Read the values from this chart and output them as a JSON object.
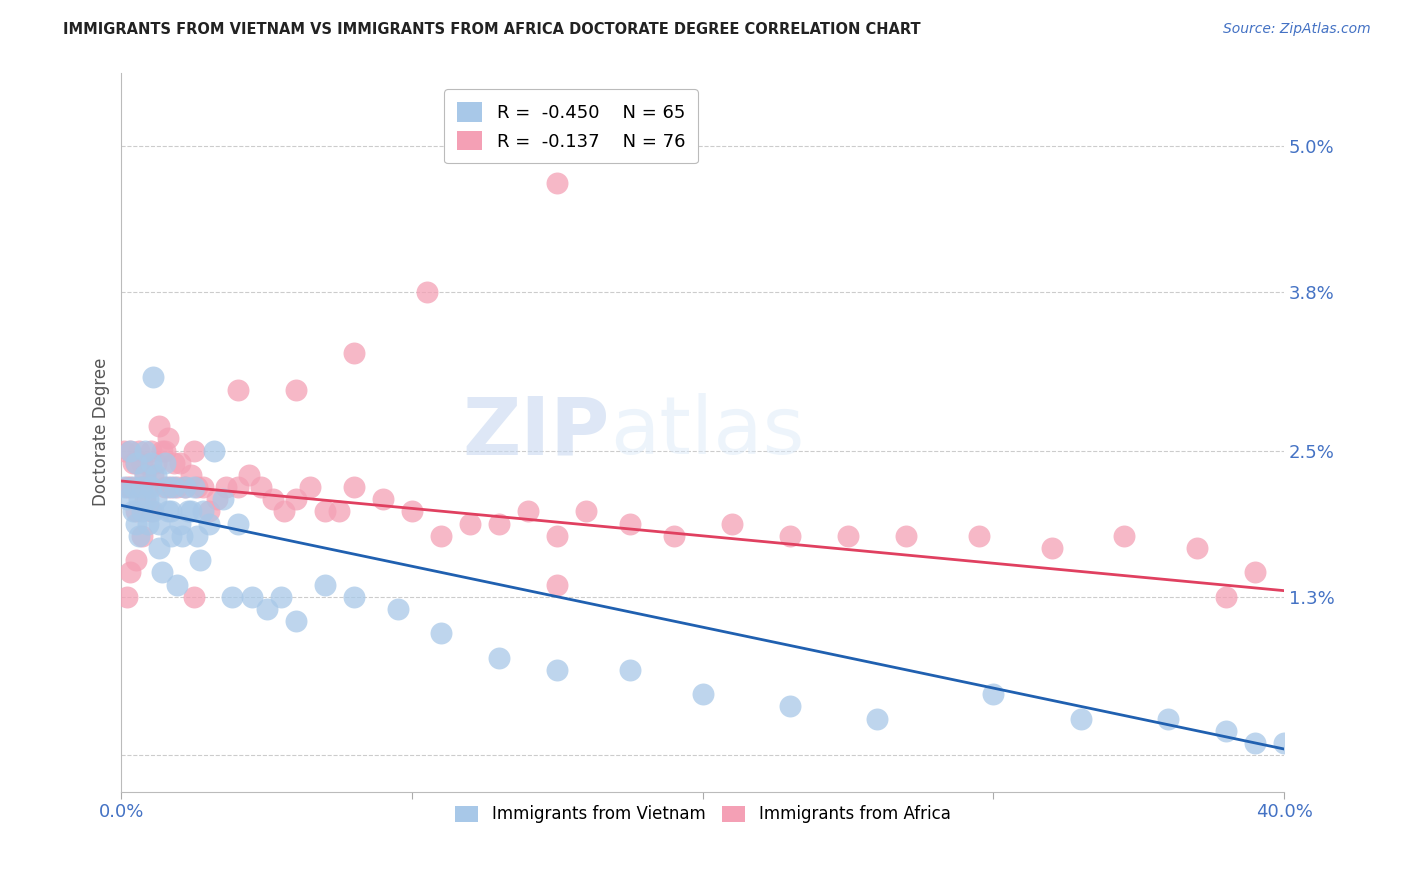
{
  "title": "IMMIGRANTS FROM VIETNAM VS IMMIGRANTS FROM AFRICA DOCTORATE DEGREE CORRELATION CHART",
  "source": "Source: ZipAtlas.com",
  "ylabel": "Doctorate Degree",
  "yticks": [
    0.0,
    0.013,
    0.025,
    0.038,
    0.05
  ],
  "ytick_labels": [
    "",
    "1.3%",
    "2.5%",
    "3.8%",
    "5.0%"
  ],
  "xlim": [
    0.0,
    0.4
  ],
  "ylim": [
    -0.003,
    0.056
  ],
  "legend_r1": "R =  -0.450",
  "legend_n1": "N = 65",
  "legend_r2": "R =  -0.137",
  "legend_n2": "N = 76",
  "color_vietnam": "#A8C8E8",
  "color_africa": "#F4A0B5",
  "line_color_vietnam": "#2060B0",
  "line_color_africa": "#E04060",
  "watermark_zip": "ZIP",
  "watermark_atlas": "atlas",
  "title_color": "#222222",
  "axis_label_color": "#4472C4",
  "vietnam_x": [
    0.001,
    0.002,
    0.003,
    0.004,
    0.004,
    0.005,
    0.005,
    0.006,
    0.006,
    0.007,
    0.007,
    0.008,
    0.008,
    0.009,
    0.009,
    0.01,
    0.01,
    0.011,
    0.011,
    0.012,
    0.012,
    0.013,
    0.013,
    0.014,
    0.015,
    0.016,
    0.016,
    0.017,
    0.017,
    0.018,
    0.019,
    0.02,
    0.021,
    0.022,
    0.023,
    0.024,
    0.025,
    0.026,
    0.027,
    0.028,
    0.03,
    0.032,
    0.035,
    0.038,
    0.04,
    0.045,
    0.05,
    0.055,
    0.06,
    0.07,
    0.08,
    0.095,
    0.11,
    0.13,
    0.15,
    0.175,
    0.2,
    0.23,
    0.26,
    0.3,
    0.33,
    0.36,
    0.38,
    0.39,
    0.4
  ],
  "vietnam_y": [
    0.022,
    0.021,
    0.025,
    0.022,
    0.02,
    0.024,
    0.019,
    0.021,
    0.018,
    0.022,
    0.02,
    0.025,
    0.023,
    0.021,
    0.019,
    0.024,
    0.022,
    0.031,
    0.02,
    0.023,
    0.021,
    0.019,
    0.017,
    0.015,
    0.024,
    0.022,
    0.02,
    0.02,
    0.018,
    0.022,
    0.014,
    0.019,
    0.018,
    0.022,
    0.02,
    0.02,
    0.022,
    0.018,
    0.016,
    0.02,
    0.019,
    0.025,
    0.021,
    0.013,
    0.019,
    0.013,
    0.012,
    0.013,
    0.011,
    0.014,
    0.013,
    0.012,
    0.01,
    0.008,
    0.007,
    0.007,
    0.005,
    0.004,
    0.003,
    0.005,
    0.003,
    0.003,
    0.002,
    0.001,
    0.001
  ],
  "africa_x": [
    0.001,
    0.002,
    0.003,
    0.003,
    0.004,
    0.005,
    0.005,
    0.006,
    0.006,
    0.007,
    0.007,
    0.008,
    0.008,
    0.009,
    0.01,
    0.011,
    0.012,
    0.013,
    0.014,
    0.015,
    0.016,
    0.017,
    0.018,
    0.019,
    0.02,
    0.022,
    0.024,
    0.026,
    0.028,
    0.03,
    0.033,
    0.036,
    0.04,
    0.044,
    0.048,
    0.052,
    0.056,
    0.06,
    0.065,
    0.07,
    0.075,
    0.08,
    0.09,
    0.1,
    0.11,
    0.12,
    0.13,
    0.14,
    0.15,
    0.16,
    0.175,
    0.19,
    0.21,
    0.23,
    0.25,
    0.27,
    0.295,
    0.32,
    0.345,
    0.37,
    0.39,
    0.15,
    0.105,
    0.08,
    0.06,
    0.04,
    0.025,
    0.015,
    0.01,
    0.007,
    0.005,
    0.003,
    0.002,
    0.025,
    0.15,
    0.38
  ],
  "africa_y": [
    0.025,
    0.022,
    0.025,
    0.022,
    0.024,
    0.024,
    0.02,
    0.025,
    0.022,
    0.024,
    0.022,
    0.023,
    0.021,
    0.022,
    0.025,
    0.023,
    0.024,
    0.027,
    0.025,
    0.025,
    0.026,
    0.022,
    0.024,
    0.022,
    0.024,
    0.022,
    0.023,
    0.022,
    0.022,
    0.02,
    0.021,
    0.022,
    0.022,
    0.023,
    0.022,
    0.021,
    0.02,
    0.021,
    0.022,
    0.02,
    0.02,
    0.022,
    0.021,
    0.02,
    0.018,
    0.019,
    0.019,
    0.02,
    0.018,
    0.02,
    0.019,
    0.018,
    0.019,
    0.018,
    0.018,
    0.018,
    0.018,
    0.017,
    0.018,
    0.017,
    0.015,
    0.047,
    0.038,
    0.033,
    0.03,
    0.03,
    0.025,
    0.022,
    0.02,
    0.018,
    0.016,
    0.015,
    0.013,
    0.013,
    0.014,
    0.013
  ]
}
